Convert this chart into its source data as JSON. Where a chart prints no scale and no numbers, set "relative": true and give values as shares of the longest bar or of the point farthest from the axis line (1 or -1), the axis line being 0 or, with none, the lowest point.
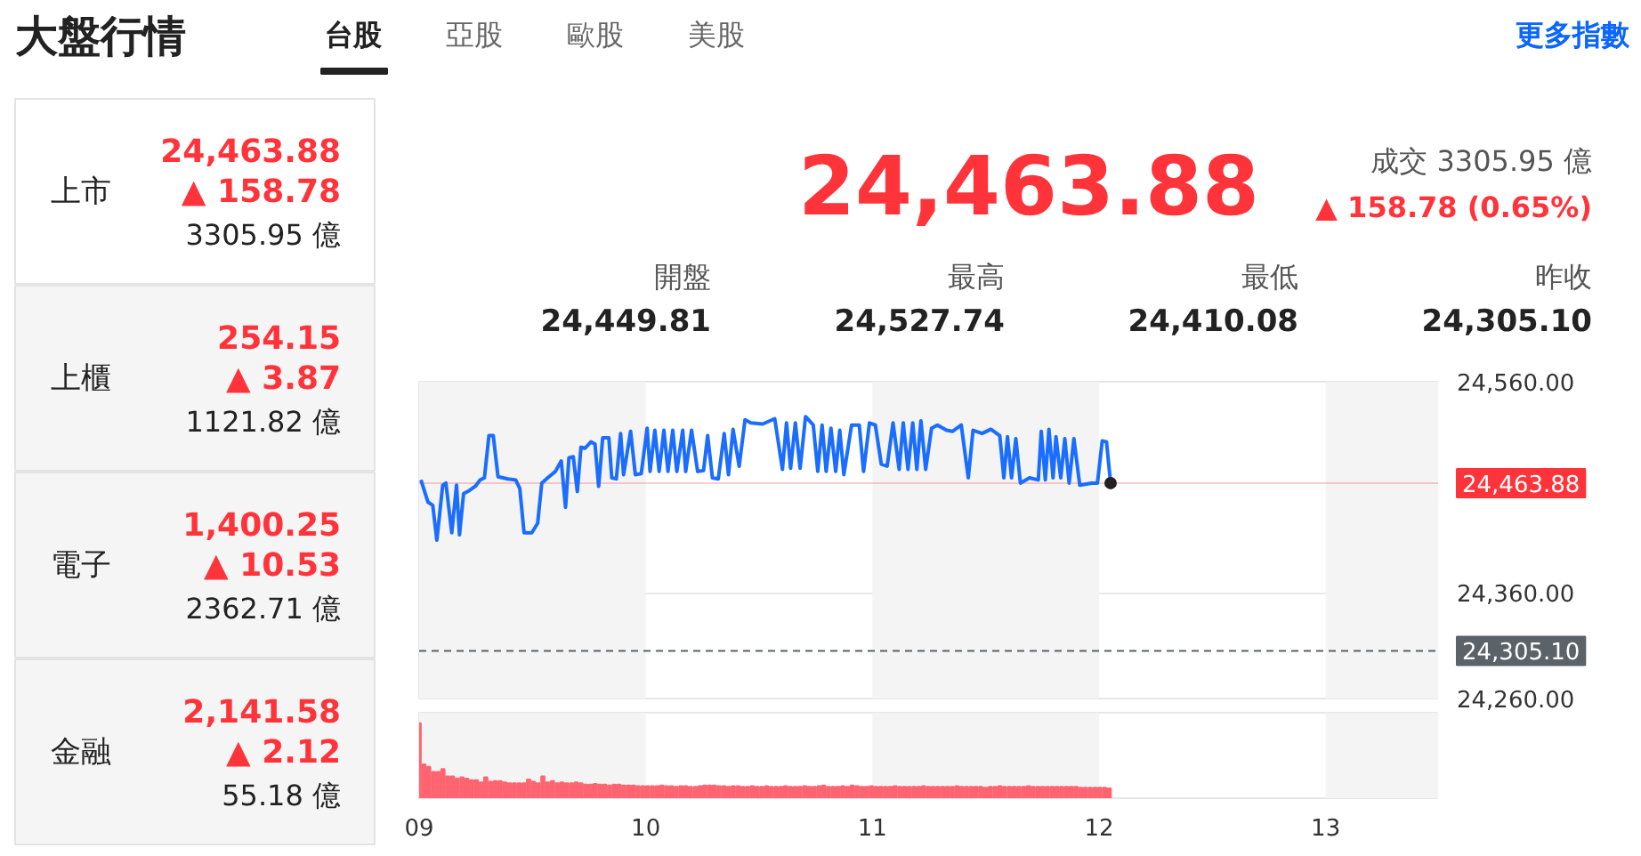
{
  "chart_data": [
    {
      "type": "other",
      "title": "大盤行情",
      "annotations": [
        "台股",
        "亞股",
        "歐股",
        "美股",
        "更多指數"
      ]
    },
    {
      "type": "other",
      "annotations": [
        "上市",
        "24,463.88",
        "▲ 158.78",
        "3305.95 億",
        "上櫃",
        "254.15",
        "▲ 3.87",
        "1121.82 億",
        "電子",
        "1,400.25",
        "▲ 10.53",
        "2362.71 億",
        "金融",
        "2,141.58",
        "▲ 2.12",
        "55.18 億"
      ]
    },
    {
      "type": "other",
      "annotations": [
        "24,463.88",
        "成交 3305.95 億",
        "▲ 158.78 (0.65%)",
        "開盤",
        "24,449.81",
        "最高",
        "24,527.74",
        "最低",
        "24,410.08",
        "昨收",
        "24,305.10"
      ]
    },
    {
      "type": "line",
      "xlim": [
        9,
        13.5
      ],
      "ylim": [
        24260,
        24560
      ],
      "yticks": [
        {
          "value": 24560,
          "label": "24,560.00"
        },
        {
          "value": 24360,
          "label": "24,360.00"
        },
        {
          "value": 24260,
          "label": "24,260.00"
        }
      ],
      "tick_labels": "y",
      "grid": "y",
      "bands": [
        {
          "axis": "x",
          "from": 9,
          "to": 10,
          "color": "#f4f4f4"
        },
        {
          "axis": "x",
          "from": 11,
          "to": 12,
          "color": "#f4f4f4"
        },
        {
          "axis": "x",
          "from": 13,
          "to": 13.5,
          "color": "#f4f4f4"
        }
      ],
      "ref_lines": [
        {
          "axis": "y",
          "value": 24463.88,
          "label": "24,463.88",
          "color": "#ff333a",
          "line_style": "solid"
        },
        {
          "axis": "y",
          "value": 24305.1,
          "label": "24,305.10",
          "color": "#5b6268",
          "line_style": "dashed"
        }
      ],
      "series": [
        {
          "type": "line",
          "color": "#1a6dff",
          "x": [
            9.008,
            9.039,
            9.06,
            9.078,
            9.104,
            9.118,
            9.144,
            9.165,
            9.178,
            9.196,
            9.222,
            9.248,
            9.269,
            9.288,
            9.308,
            9.327,
            9.348,
            9.392,
            9.426,
            9.444,
            9.463,
            9.497,
            9.523,
            9.541,
            9.567,
            9.601,
            9.627,
            9.646,
            9.661,
            9.68,
            9.698,
            9.714,
            9.732,
            9.758,
            9.776,
            9.792,
            9.81,
            9.837,
            9.85,
            9.87,
            9.889,
            9.902,
            9.933,
            9.954,
            9.98,
            10.006,
            10.019,
            10.04,
            10.059,
            10.08,
            10.098,
            10.119,
            10.137,
            10.163,
            10.176,
            10.202,
            10.229,
            10.255,
            10.273,
            10.294,
            10.32,
            10.346,
            10.365,
            10.385,
            10.412,
            10.438,
            10.464,
            10.516,
            10.569,
            10.603,
            10.621,
            10.639,
            10.66,
            10.681,
            10.705,
            10.739,
            10.759,
            10.778,
            10.796,
            10.817,
            10.838,
            10.856,
            10.874,
            10.908,
            10.942,
            10.961,
            10.987,
            11.013,
            11.039,
            11.065,
            11.091,
            11.118,
            11.136,
            11.157,
            11.178,
            11.196,
            11.214,
            11.235,
            11.261,
            11.287,
            11.327,
            11.353,
            11.392,
            11.423,
            11.444,
            11.484,
            11.523,
            11.562,
            11.58,
            11.596,
            11.614,
            11.633,
            11.653,
            11.693,
            11.732,
            11.745,
            11.763,
            11.779,
            11.797,
            11.81,
            11.831,
            11.849,
            11.868,
            11.889,
            11.915,
            11.967,
            11.993,
            12.014,
            12.033,
            12.051
          ],
          "values": [
            24467,
            24446,
            24443,
            24410,
            24462,
            24464,
            24417,
            24462,
            24415,
            24454,
            24457,
            24461,
            24467,
            24469,
            24509,
            24509,
            24470,
            24468,
            24467,
            24459,
            24417,
            24417,
            24426,
            24464,
            24469,
            24475,
            24485,
            24441,
            24488,
            24489,
            24456,
            24498,
            24497,
            24503,
            24501,
            24461,
            24507,
            24507,
            24469,
            24468,
            24511,
            24472,
            24513,
            24472,
            24473,
            24516,
            24475,
            24514,
            24475,
            24514,
            24475,
            24514,
            24475,
            24514,
            24475,
            24514,
            24475,
            24476,
            24509,
            24469,
            24468,
            24511,
            24472,
            24515,
            24480,
            24524,
            24521,
            24520,
            24525,
            24477,
            24521,
            24478,
            24521,
            24478,
            24527,
            24519,
            24475,
            24519,
            24475,
            24516,
            24475,
            24514,
            24472,
            24519,
            24519,
            24475,
            24521,
            24519,
            24482,
            24480,
            24521,
            24477,
            24521,
            24477,
            24521,
            24477,
            24523,
            24477,
            24516,
            24519,
            24514,
            24513,
            24519,
            24469,
            24514,
            24511,
            24515,
            24509,
            24469,
            24508,
            24469,
            24506,
            24464,
            24469,
            24467,
            24513,
            24467,
            24515,
            24469,
            24508,
            24469,
            24506,
            24464,
            24506,
            24462,
            24464,
            24464,
            24504,
            24503,
            24464
          ]
        },
        {
          "type": "scatter",
          "color": "#222222",
          "x": [
            12.051
          ],
          "values": [
            24464
          ]
        }
      ]
    },
    {
      "type": "bar",
      "relative": true,
      "xlim": [
        9,
        13.5
      ],
      "tick_labels": "x",
      "xticks": [
        {
          "value": 9,
          "label": "09"
        },
        {
          "value": 10,
          "label": "10"
        },
        {
          "value": 11,
          "label": "11"
        },
        {
          "value": 12,
          "label": "12"
        },
        {
          "value": 13,
          "label": "13"
        }
      ],
      "bands": [
        {
          "axis": "x",
          "from": 9,
          "to": 10,
          "color": "#f4f4f4"
        },
        {
          "axis": "x",
          "from": 11,
          "to": 12,
          "color": "#f4f4f4"
        },
        {
          "axis": "x",
          "from": 13,
          "to": 13.5,
          "color": "#f4f4f4"
        }
      ],
      "series": [
        {
          "color": "#ff6470",
          "x": [
            9,
            9.021,
            9.042,
            9.063,
            9.084,
            9.105,
            9.126,
            9.147,
            9.168,
            9.189,
            9.21,
            9.231,
            9.252,
            9.273,
            9.294,
            9.315,
            9.336,
            9.357,
            9.378,
            9.399,
            9.42,
            9.441,
            9.462,
            9.483,
            9.504,
            9.525,
            9.546,
            9.567,
            9.588,
            9.609,
            9.63,
            9.651,
            9.672,
            9.693,
            9.714,
            9.735,
            9.756,
            9.777,
            9.798,
            9.819,
            9.84,
            9.861,
            9.882,
            9.903,
            9.924,
            9.945,
            9.966,
            9.987,
            10.008,
            10.029,
            10.05,
            10.071,
            10.092,
            10.113,
            10.134,
            10.155,
            10.176,
            10.197,
            10.218,
            10.239,
            10.26,
            10.281,
            10.302,
            10.323,
            10.344,
            10.365,
            10.386,
            10.407,
            10.428,
            10.449,
            10.47,
            10.491,
            10.512,
            10.533,
            10.554,
            10.575,
            10.596,
            10.617,
            10.638,
            10.659,
            10.68,
            10.701,
            10.722,
            10.743,
            10.764,
            10.785,
            10.806,
            10.827,
            10.848,
            10.869,
            10.89,
            10.911,
            10.932,
            10.953,
            10.974,
            10.995,
            11.016,
            11.037,
            11.058,
            11.079,
            11.1,
            11.121,
            11.142,
            11.163,
            11.184,
            11.205,
            11.226,
            11.247,
            11.268,
            11.289,
            11.31,
            11.331,
            11.352,
            11.373,
            11.394,
            11.415,
            11.436,
            11.457,
            11.478,
            11.499,
            11.52,
            11.541,
            11.562,
            11.583,
            11.604,
            11.625,
            11.646,
            11.667,
            11.688,
            11.709,
            11.73,
            11.751,
            11.772,
            11.793,
            11.814,
            11.835,
            11.856,
            11.877,
            11.898,
            11.919,
            11.94,
            11.961,
            11.982,
            12.003,
            12.024,
            12.045
          ],
          "values": [
            1.0,
            0.45,
            0.42,
            0.35,
            0.35,
            0.39,
            0.29,
            0.29,
            0.26,
            0.28,
            0.26,
            0.24,
            0.24,
            0.21,
            0.28,
            0.22,
            0.23,
            0.23,
            0.21,
            0.2,
            0.2,
            0.2,
            0.2,
            0.25,
            0.22,
            0.2,
            0.29,
            0.21,
            0.23,
            0.2,
            0.21,
            0.2,
            0.2,
            0.21,
            0.2,
            0.18,
            0.18,
            0.19,
            0.18,
            0.18,
            0.17,
            0.18,
            0.18,
            0.17,
            0.17,
            0.17,
            0.16,
            0.16,
            0.16,
            0.16,
            0.16,
            0.17,
            0.16,
            0.16,
            0.15,
            0.16,
            0.16,
            0.15,
            0.15,
            0.16,
            0.17,
            0.17,
            0.17,
            0.16,
            0.16,
            0.15,
            0.16,
            0.16,
            0.15,
            0.15,
            0.16,
            0.15,
            0.15,
            0.16,
            0.15,
            0.15,
            0.15,
            0.16,
            0.15,
            0.15,
            0.15,
            0.16,
            0.15,
            0.15,
            0.16,
            0.17,
            0.15,
            0.15,
            0.15,
            0.16,
            0.15,
            0.17,
            0.16,
            0.15,
            0.15,
            0.16,
            0.15,
            0.15,
            0.15,
            0.15,
            0.16,
            0.15,
            0.15,
            0.15,
            0.15,
            0.15,
            0.16,
            0.15,
            0.15,
            0.15,
            0.15,
            0.15,
            0.15,
            0.16,
            0.15,
            0.15,
            0.15,
            0.15,
            0.15,
            0.14,
            0.15,
            0.15,
            0.16,
            0.15,
            0.15,
            0.15,
            0.15,
            0.15,
            0.16,
            0.15,
            0.15,
            0.15,
            0.15,
            0.15,
            0.15,
            0.15,
            0.15,
            0.15,
            0.15,
            0.14,
            0.14,
            0.14,
            0.14,
            0.14,
            0.14,
            0.13
          ]
        }
      ]
    }
  ]
}
